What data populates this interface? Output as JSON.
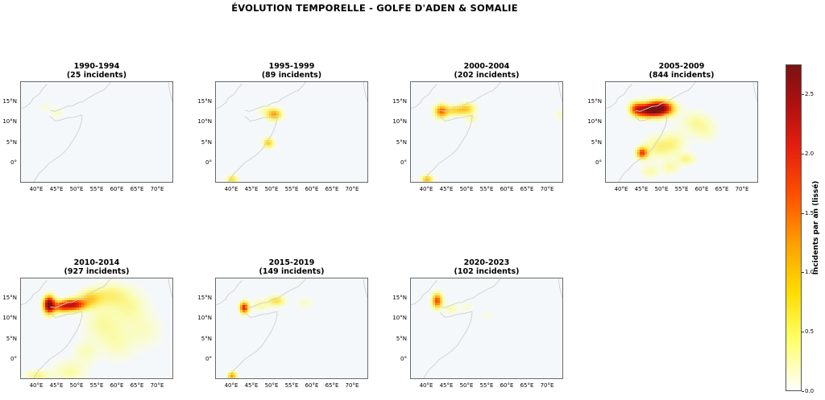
{
  "figure": {
    "title": "ÉVOLUTION TEMPORELLE - GOLFE D'ADEN & SOMALIE",
    "colorbar": {
      "label": "Incidents par an (lissé)",
      "min": 0.0,
      "max": 2.75,
      "ticks": [
        "0.0",
        "0.5",
        "1.0",
        "1.5",
        "2.0",
        "2.5"
      ],
      "tick_values": [
        0.0,
        0.5,
        1.0,
        1.5,
        2.0,
        2.5
      ],
      "colormap": [
        "#ffffff",
        "#ffff66",
        "#ffdd00",
        "#ffa000",
        "#ff5000",
        "#e41e10",
        "#b01010",
        "#7a1212"
      ]
    }
  },
  "chart_data": [
    {
      "type": "heatmap",
      "period": "1990-1994",
      "count_label": "(25 incidents)",
      "incidents": 25,
      "xticks": [
        "40°E",
        "45°E",
        "50°E",
        "55°E",
        "60°E",
        "65°E",
        "70°E"
      ],
      "yticks": [
        "15°N",
        "10°N",
        "5°N",
        "0°"
      ],
      "xlim": [
        36,
        74
      ],
      "ylim": [
        -5,
        20
      ],
      "hotspots": [
        [
          45,
          12.5,
          1.2,
          0.9,
          0.1
        ],
        [
          42,
          14,
          1,
          0.8,
          0.08
        ]
      ]
    },
    {
      "type": "heatmap",
      "period": "1995-1999",
      "count_label": "(89 incidents)",
      "incidents": 89,
      "xticks": [
        "40°E",
        "45°E",
        "50°E",
        "55°E",
        "60°E",
        "65°E",
        "70°E"
      ],
      "yticks": [
        "15°N",
        "10°N",
        "5°N",
        "0°"
      ],
      "xlim": [
        36,
        74
      ],
      "ylim": [
        -5,
        20
      ],
      "hotspots": [
        [
          50.5,
          12,
          1.3,
          1.0,
          0.45
        ],
        [
          49,
          5,
          1.0,
          0.9,
          0.35
        ],
        [
          40,
          -4,
          1.0,
          0.8,
          0.3
        ],
        [
          48,
          13,
          1.5,
          1,
          0.1
        ]
      ]
    },
    {
      "type": "heatmap",
      "period": "2000-2004",
      "count_label": "(202 incidents)",
      "incidents": 202,
      "xticks": [
        "40°E",
        "45°E",
        "50°E",
        "55°E",
        "60°E",
        "65°E",
        "70°E"
      ],
      "yticks": [
        "15°N",
        "10°N",
        "5°N",
        "0°"
      ],
      "xlim": [
        36,
        74
      ],
      "ylim": [
        -5,
        20
      ],
      "hotspots": [
        [
          43.5,
          12.8,
          1.2,
          1.2,
          0.5
        ],
        [
          47,
          13,
          1.8,
          0.9,
          0.3
        ],
        [
          50,
          13.5,
          1.5,
          1.0,
          0.3
        ],
        [
          40,
          -4,
          1,
          0.8,
          0.4
        ],
        [
          51,
          11,
          1,
          0.8,
          0.15
        ],
        [
          73,
          12,
          1,
          1,
          0.1
        ]
      ]
    },
    {
      "type": "heatmap",
      "period": "2005-2009",
      "count_label": "(844 incidents)",
      "incidents": 844,
      "xticks": [
        "40°E",
        "45°E",
        "50°E",
        "55°E",
        "60°E",
        "65°E",
        "70°E"
      ],
      "yticks": [
        "15°N",
        "10°N",
        "5°N",
        "0°"
      ],
      "xlim": [
        36,
        74
      ],
      "ylim": [
        -5,
        20
      ],
      "hotspots": [
        [
          49.5,
          13.5,
          2.2,
          1.3,
          1.0
        ],
        [
          46,
          13,
          2.0,
          1.2,
          0.7
        ],
        [
          43.5,
          13.5,
          1.2,
          1.2,
          0.4
        ],
        [
          45,
          2.5,
          1.0,
          1.0,
          0.6
        ],
        [
          49,
          4,
          2.5,
          2,
          0.2
        ],
        [
          53,
          5,
          2,
          2,
          0.15
        ],
        [
          58,
          10,
          2.5,
          2,
          0.15
        ],
        [
          56,
          1,
          1.5,
          1,
          0.2
        ],
        [
          52,
          -1,
          1.5,
          1.2,
          0.15
        ],
        [
          47,
          -2,
          1.5,
          1.2,
          0.15
        ],
        [
          61,
          8,
          2,
          2,
          0.1
        ]
      ]
    },
    {
      "type": "heatmap",
      "period": "2010-2014",
      "count_label": "(927 incidents)",
      "incidents": 927,
      "xticks": [
        "40°E",
        "45°E",
        "50°E",
        "55°E",
        "60°E",
        "65°E",
        "70°E"
      ],
      "yticks": [
        "15°N",
        "10°N",
        "5°N",
        "0°"
      ],
      "xlim": [
        36,
        74
      ],
      "ylim": [
        -5,
        20
      ],
      "hotspots": [
        [
          43,
          13.5,
          1.0,
          1.5,
          1.0
        ],
        [
          49,
          13.5,
          2.0,
          1.0,
          0.75
        ],
        [
          46,
          13,
          1.5,
          1.0,
          0.45
        ],
        [
          53,
          15,
          2,
          1.5,
          0.3
        ],
        [
          58,
          16,
          3,
          2,
          0.2
        ],
        [
          63,
          13,
          3,
          3,
          0.15
        ],
        [
          56,
          9,
          3,
          3,
          0.15
        ],
        [
          60,
          4,
          3,
          3,
          0.12
        ],
        [
          52,
          2,
          2,
          2,
          0.12
        ],
        [
          48,
          -3,
          3,
          2,
          0.15
        ],
        [
          40,
          -4,
          2,
          1,
          0.2
        ],
        [
          67,
          7,
          3,
          3,
          0.1
        ]
      ]
    },
    {
      "type": "heatmap",
      "period": "2015-2019",
      "count_label": "(149 incidents)",
      "incidents": 149,
      "xticks": [
        "40°E",
        "45°E",
        "50°E",
        "55°E",
        "60°E",
        "65°E",
        "70°E"
      ],
      "yticks": [
        "15°N",
        "10°N",
        "5°N",
        "0°"
      ],
      "xlim": [
        36,
        74
      ],
      "ylim": [
        -5,
        20
      ],
      "hotspots": [
        [
          43,
          12.8,
          0.8,
          1.0,
          0.7
        ],
        [
          51,
          14.5,
          1.5,
          0.9,
          0.3
        ],
        [
          47,
          13.5,
          1.5,
          1,
          0.15
        ],
        [
          40,
          -4,
          0.8,
          0.8,
          0.45
        ],
        [
          58,
          14,
          1.5,
          1,
          0.1
        ]
      ]
    },
    {
      "type": "heatmap",
      "period": "2020-2023",
      "count_label": "(102 incidents)",
      "incidents": 102,
      "xticks": [
        "40°E",
        "45°E",
        "50°E",
        "55°E",
        "60°E",
        "65°E",
        "70°E"
      ],
      "yticks": [
        "15°N",
        "10°N",
        "5°N",
        "0°"
      ],
      "xlim": [
        36,
        74
      ],
      "ylim": [
        -5,
        20
      ],
      "hotspots": [
        [
          42.5,
          14.5,
          0.9,
          1.3,
          0.6
        ],
        [
          46,
          12.5,
          1.2,
          0.8,
          0.15
        ],
        [
          50,
          13,
          1.2,
          0.8,
          0.08
        ],
        [
          55,
          11,
          1,
          1,
          0.06
        ]
      ]
    }
  ]
}
